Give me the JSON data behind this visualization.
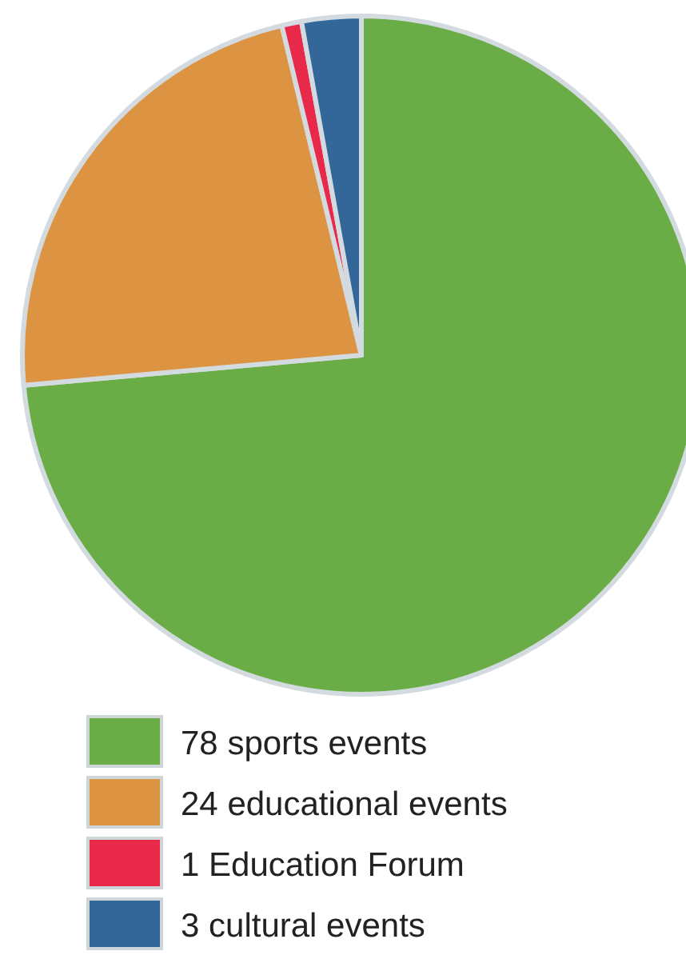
{
  "chart_data": {
    "type": "pie",
    "categories": [
      "78 sports events",
      "24 educational events",
      "1 Education Forum",
      "3 cultural events"
    ],
    "values": [
      78,
      24,
      1,
      3
    ],
    "colors": [
      "#6aad46",
      "#dd9442",
      "#e8294a",
      "#336699"
    ],
    "legend": "bottom"
  }
}
